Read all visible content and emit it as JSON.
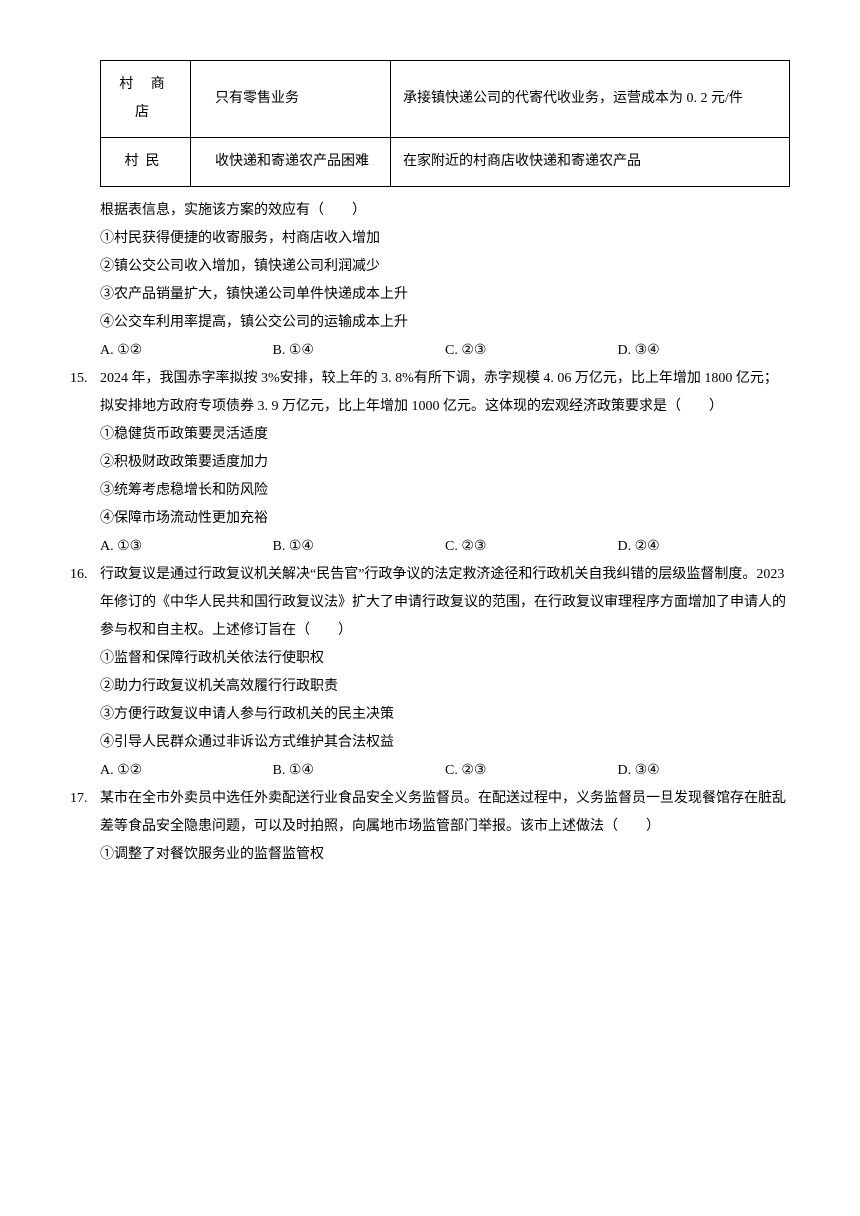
{
  "table": {
    "rows": [
      {
        "col1": "村 商店",
        "col2": "只有零售业务",
        "col3": "承接镇快递公司的代寄代收业务，运营成本为 0. 2 元/件"
      },
      {
        "col1": "村民",
        "col2": "收快递和寄递农产品困难",
        "col3": "在家附近的村商店收快递和寄递农产品"
      }
    ]
  },
  "q14": {
    "stem": "根据表信息，实施该方案的效应有（　　）",
    "items": [
      "①村民获得便捷的收寄服务，村商店收入增加",
      "②镇公交公司收入增加，镇快递公司利润减少",
      "③农产品销量扩大，镇快递公司单件快递成本上升",
      "④公交车利用率提高，镇公交公司的运输成本上升"
    ],
    "options": {
      "A": "A. ①②",
      "B": "B. ①④",
      "C": "C. ②③",
      "D": "D. ③④"
    }
  },
  "q15": {
    "num": "15.",
    "stem": "2024 年，我国赤字率拟按 3%安排，较上年的 3. 8%有所下调，赤字规模 4. 06 万亿元，比上年增加 1800 亿元；拟安排地方政府专项债券 3. 9 万亿元，比上年增加 1000 亿元。这体现的宏观经济政策要求是（　　）",
    "items": [
      "①稳健货币政策要灵活适度",
      "②积极财政政策要适度加力",
      "③统筹考虑稳增长和防风险",
      "④保障市场流动性更加充裕"
    ],
    "options": {
      "A": "A. ①③",
      "B": "B. ①④",
      "C": "C. ②③",
      "D": "D. ②④"
    }
  },
  "q16": {
    "num": "16.",
    "stem": "行政复议是通过行政复议机关解决“民告官”行政争议的法定救济途径和行政机关自我纠错的层级监督制度。2023 年修订的《中华人民共和国行政复议法》扩大了申请行政复议的范围，在行政复议审理程序方面增加了申请人的参与权和自主权。上述修订旨在（　　）",
    "items": [
      "①监督和保障行政机关依法行使职权",
      "②助力行政复议机关高效履行行政职责",
      "③方便行政复议申请人参与行政机关的民主决策",
      "④引导人民群众通过非诉讼方式维护其合法权益"
    ],
    "options": {
      "A": "A. ①②",
      "B": "B. ①④",
      "C": "C. ②③",
      "D": "D. ③④"
    }
  },
  "q17": {
    "num": "17.",
    "stem": "某市在全市外卖员中选任外卖配送行业食品安全义务监督员。在配送过程中，义务监督员一旦发现餐馆存在脏乱差等食品安全隐患问题，可以及时拍照，向属地市场监管部门举报。该市上述做法（　　）",
    "items": [
      "①调整了对餐饮服务业的监督监管权"
    ]
  }
}
